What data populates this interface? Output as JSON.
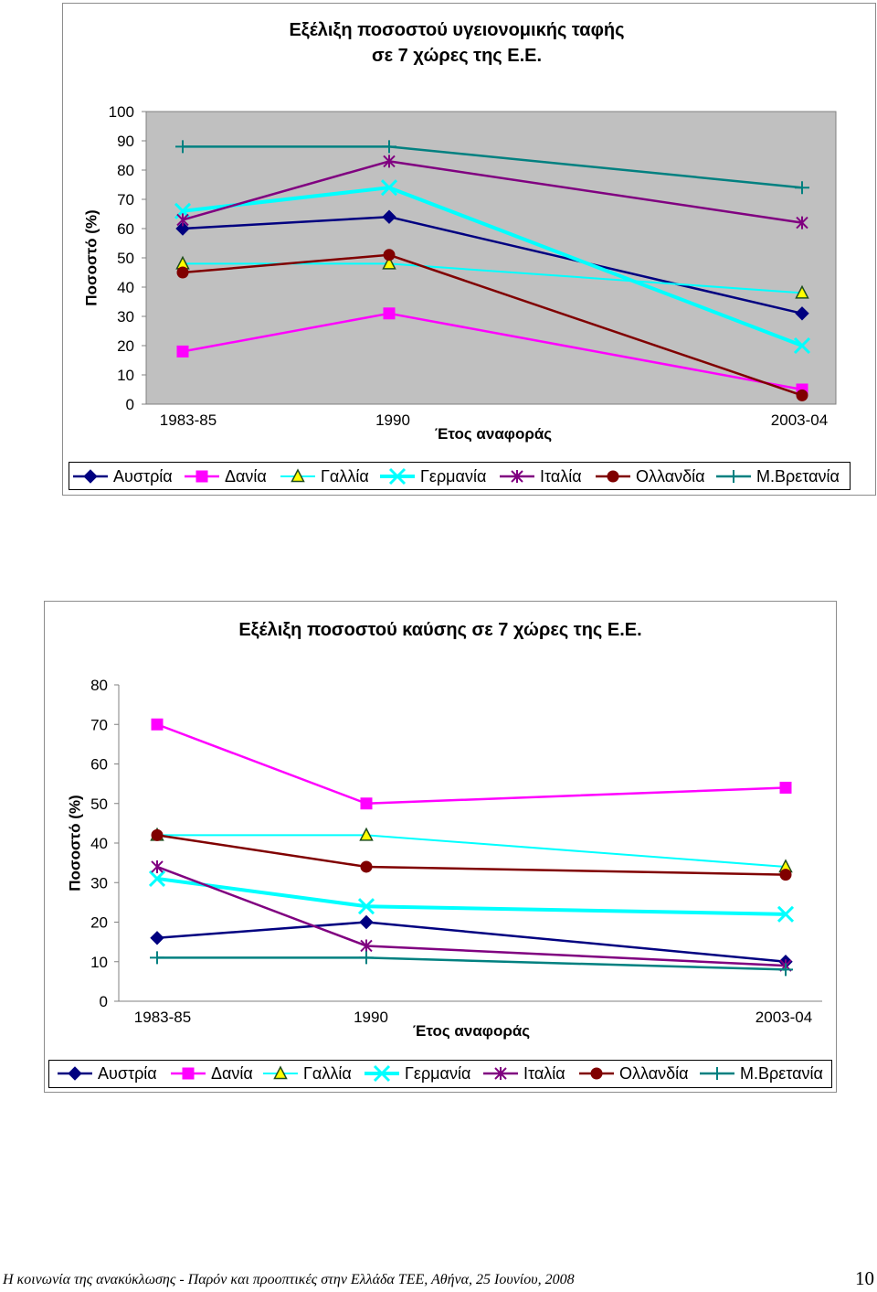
{
  "page": {
    "footer": "Η κοινωνία της ανακύκλωσης - Παρόν και προοπτικές στην Ελλάδα ΤΕΕ, Αθήνα, 25 Ιουνίου, 2008",
    "page_number": "10"
  },
  "chart_data": [
    {
      "type": "line",
      "title": [
        "Εξέλιξη ποσοστού υγειονομικής ταφής",
        "σε 7 χώρες της Ε.Ε."
      ],
      "xlabel": "Έτος αναφοράς",
      "ylabel": "Ποσοστό (%)",
      "categories": [
        "1983-85",
        "1990",
        "2003-04"
      ],
      "ylim": [
        0,
        100
      ],
      "yticks": [
        0,
        10,
        20,
        30,
        40,
        50,
        60,
        70,
        80,
        90,
        100
      ],
      "grid": false,
      "legend": "bottom",
      "plot_background": "#C0C0C0",
      "series": [
        {
          "name": "Αυστρία",
          "values": [
            60,
            64,
            31
          ],
          "color": "#000080",
          "marker": "diamond"
        },
        {
          "name": "Δανία",
          "values": [
            18,
            31,
            5
          ],
          "color": "#FF00FF",
          "marker": "square"
        },
        {
          "name": "Γαλλία",
          "values": [
            48,
            48,
            38
          ],
          "color": "#00FFFF",
          "marker": "triangle",
          "marker_fill": "#FFFF00"
        },
        {
          "name": "Γερμανία",
          "values": [
            66,
            74,
            20
          ],
          "color": "#00FFFF",
          "marker": "x"
        },
        {
          "name": "Ιταλία",
          "values": [
            63,
            83,
            62
          ],
          "color": "#800080",
          "marker": "asterisk"
        },
        {
          "name": "Ολλανδία",
          "values": [
            45,
            51,
            3
          ],
          "color": "#800000",
          "marker": "circle"
        },
        {
          "name": "Μ.Βρετανία",
          "values": [
            88,
            88,
            74
          ],
          "color": "#008080",
          "marker": "plus"
        }
      ]
    },
    {
      "type": "line",
      "title": [
        "Εξέλιξη ποσοστού καύσης σε 7 χώρες της Ε.Ε."
      ],
      "xlabel": "Έτος αναφοράς",
      "ylabel": "Ποσοστό (%)",
      "categories": [
        "1983-85",
        "1990",
        "2003-04"
      ],
      "ylim": [
        0,
        80
      ],
      "yticks": [
        0,
        10,
        20,
        30,
        40,
        50,
        60,
        70,
        80
      ],
      "grid": false,
      "legend": "bottom",
      "plot_background": "#FFFFFF",
      "series": [
        {
          "name": "Αυστρία",
          "values": [
            16,
            20,
            10
          ],
          "color": "#000080",
          "marker": "diamond"
        },
        {
          "name": "Δανία",
          "values": [
            70,
            50,
            54
          ],
          "color": "#FF00FF",
          "marker": "square"
        },
        {
          "name": "Γαλλία",
          "values": [
            42,
            42,
            34
          ],
          "color": "#00FFFF",
          "marker": "triangle",
          "marker_fill": "#FFFF00"
        },
        {
          "name": "Γερμανία",
          "values": [
            31,
            24,
            22
          ],
          "color": "#00FFFF",
          "marker": "x"
        },
        {
          "name": "Ιταλία",
          "values": [
            34,
            14,
            9
          ],
          "color": "#800080",
          "marker": "asterisk"
        },
        {
          "name": "Ολλανδία",
          "values": [
            42,
            34,
            32
          ],
          "color": "#800000",
          "marker": "circle"
        },
        {
          "name": "Μ.Βρετανία",
          "values": [
            11,
            11,
            8
          ],
          "color": "#008080",
          "marker": "plus"
        }
      ]
    }
  ]
}
